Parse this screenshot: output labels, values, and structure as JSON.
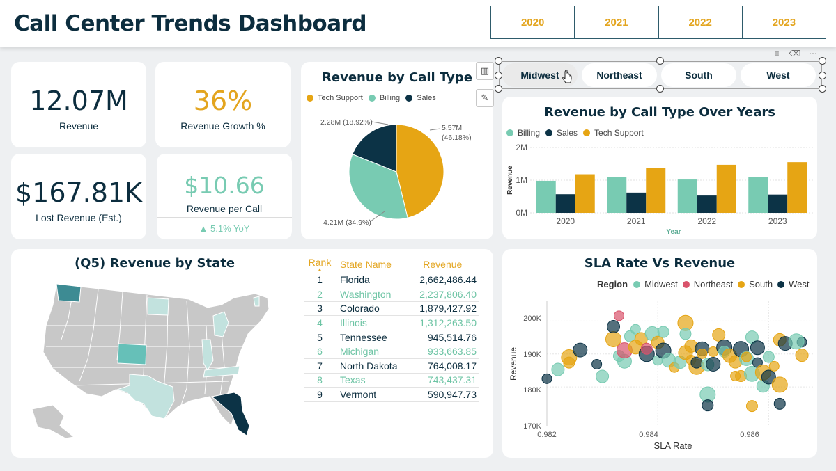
{
  "header": {
    "title": "Call Center Trends Dashboard"
  },
  "year_slicer": [
    "2020",
    "2021",
    "2022",
    "2023"
  ],
  "kpis": {
    "revenue": {
      "value": "12.07M",
      "label": "Revenue"
    },
    "growth": {
      "value": "36%",
      "label": "Revenue Growth %"
    },
    "lost": {
      "value": "$167.81K",
      "label": "Lost Revenue (Est.)"
    },
    "per_call": {
      "value": "$10.66",
      "label": "Revenue per Call",
      "yoy": "5.1% YoY"
    }
  },
  "region_slicer": {
    "items": [
      "Midwest",
      "Northeast",
      "South",
      "West"
    ],
    "selected": "Midwest"
  },
  "colors": {
    "billing": "#78cbb2",
    "sales": "#0c3346",
    "tech_support": "#e6a514",
    "northeast": "#d9536b",
    "highlight_state": "#3d8b93",
    "mid_state": "#66c0b8",
    "light_state": "#c2e2de",
    "gray_state": "#c8c8c8"
  },
  "pie": {
    "title": "Revenue by Call Type",
    "legend": [
      "Tech Support",
      "Billing",
      "Sales"
    ],
    "labels": {
      "tech": "5.57M",
      "tech_pct": "(46.18%)",
      "billing": "4.21M (34.9%)",
      "sales": "2.28M (18.92%)"
    }
  },
  "column": {
    "title": "Revenue by Call Type Over Years",
    "legend": [
      "Billing",
      "Sales",
      "Tech Support"
    ],
    "ylabel": "Revenue",
    "xlabel": "Year",
    "yticks": [
      "2M",
      "1M",
      "0M"
    ]
  },
  "map": {
    "title": "(Q5) Revenue by State"
  },
  "state_table": {
    "headers": {
      "rank": "Rank",
      "name": "State Name",
      "revenue": "Revenue"
    },
    "rows": [
      {
        "rank": "1",
        "name": "Florida",
        "revenue": "2,662,486.44"
      },
      {
        "rank": "2",
        "name": "Washington",
        "revenue": "2,237,806.40"
      },
      {
        "rank": "3",
        "name": "Colorado",
        "revenue": "1,879,427.92"
      },
      {
        "rank": "4",
        "name": "Illinois",
        "revenue": "1,312,263.50"
      },
      {
        "rank": "5",
        "name": "Tennessee",
        "revenue": "945,514.76"
      },
      {
        "rank": "6",
        "name": "Michigan",
        "revenue": "933,663.85"
      },
      {
        "rank": "7",
        "name": "North Dakota",
        "revenue": "764,008.17"
      },
      {
        "rank": "8",
        "name": "Texas",
        "revenue": "743,437.31"
      },
      {
        "rank": "9",
        "name": "Vermont",
        "revenue": "590,947.73"
      }
    ]
  },
  "scatter": {
    "title": "SLA Rate Vs Revenue",
    "legend_title": "Region",
    "legend": [
      "Midwest",
      "Northeast",
      "South",
      "West"
    ],
    "xlabel": "SLA Rate",
    "ylabel": "Revenue",
    "xticks": [
      "0.982",
      "0.984",
      "0.986"
    ],
    "yticks": [
      "200K",
      "190K",
      "180K",
      "170K"
    ]
  },
  "chart_data": [
    {
      "type": "pie",
      "title": "Revenue by Call Type",
      "categories": [
        "Tech Support",
        "Billing",
        "Sales"
      ],
      "values": [
        5.57,
        4.21,
        2.28
      ],
      "percent": [
        46.18,
        34.9,
        18.92
      ],
      "unit": "M"
    },
    {
      "type": "bar",
      "title": "Revenue by Call Type Over Years",
      "categories": [
        "2020",
        "2021",
        "2022",
        "2023"
      ],
      "series": [
        {
          "name": "Billing",
          "values": [
            0.98,
            1.1,
            1.02,
            1.1
          ]
        },
        {
          "name": "Sales",
          "values": [
            0.57,
            0.62,
            0.53,
            0.56
          ]
        },
        {
          "name": "Tech Support",
          "values": [
            1.18,
            1.38,
            1.47,
            1.55
          ]
        }
      ],
      "xlabel": "Year",
      "ylabel": "Revenue",
      "ylim": [
        0,
        2
      ],
      "unit": "M"
    },
    {
      "type": "scatter",
      "title": "SLA Rate Vs Revenue",
      "xlabel": "SLA Rate",
      "ylabel": "Revenue",
      "xlim": [
        0.982,
        0.9868
      ],
      "ylim": [
        168,
        206
      ],
      "unit_y": "K",
      "legend": [
        "Midwest",
        "Northeast",
        "South",
        "West"
      ],
      "points": [
        {
          "x": 0.982,
          "y": 182.5,
          "r": "West"
        },
        {
          "x": 0.9822,
          "y": 185.3,
          "r": "Midwest"
        },
        {
          "x": 0.9824,
          "y": 189.0,
          "r": "South"
        },
        {
          "x": 0.9824,
          "y": 187.4,
          "r": "South"
        },
        {
          "x": 0.9826,
          "y": 191.2,
          "r": "West"
        },
        {
          "x": 0.9829,
          "y": 186.9,
          "r": "West"
        },
        {
          "x": 0.983,
          "y": 183.2,
          "r": "Midwest"
        },
        {
          "x": 0.9832,
          "y": 194.5,
          "r": "South"
        },
        {
          "x": 0.9833,
          "y": 189.4,
          "r": "Midwest"
        },
        {
          "x": 0.9834,
          "y": 187.8,
          "r": "Midwest"
        },
        {
          "x": 0.9833,
          "y": 201.6,
          "r": "Northeast"
        },
        {
          "x": 0.9832,
          "y": 198.3,
          "r": "West"
        },
        {
          "x": 0.9834,
          "y": 191.1,
          "r": "Northeast"
        },
        {
          "x": 0.9835,
          "y": 195.4,
          "r": "Midwest"
        },
        {
          "x": 0.9836,
          "y": 192.1,
          "r": "South"
        },
        {
          "x": 0.9836,
          "y": 197.5,
          "r": "Midwest"
        },
        {
          "x": 0.9837,
          "y": 194.6,
          "r": "South"
        },
        {
          "x": 0.9838,
          "y": 190.0,
          "r": "West"
        },
        {
          "x": 0.9838,
          "y": 191.6,
          "r": "Northeast"
        },
        {
          "x": 0.9839,
          "y": 196.2,
          "r": "Midwest"
        },
        {
          "x": 0.984,
          "y": 188.1,
          "r": "Midwest"
        },
        {
          "x": 0.984,
          "y": 193.5,
          "r": "South"
        },
        {
          "x": 0.9841,
          "y": 191.0,
          "r": "West"
        },
        {
          "x": 0.9841,
          "y": 196.7,
          "r": "Midwest"
        },
        {
          "x": 0.9842,
          "y": 188.1,
          "r": "Midwest"
        },
        {
          "x": 0.9843,
          "y": 185.9,
          "r": "South"
        },
        {
          "x": 0.9844,
          "y": 187.5,
          "r": "Midwest"
        },
        {
          "x": 0.9845,
          "y": 199.4,
          "r": "South"
        },
        {
          "x": 0.9845,
          "y": 196.1,
          "r": "Midwest"
        },
        {
          "x": 0.9845,
          "y": 190.4,
          "r": "South"
        },
        {
          "x": 0.9846,
          "y": 188.2,
          "r": "South"
        },
        {
          "x": 0.9846,
          "y": 192.4,
          "r": "South"
        },
        {
          "x": 0.9847,
          "y": 186.1,
          "r": "South"
        },
        {
          "x": 0.9847,
          "y": 187.4,
          "r": "West"
        },
        {
          "x": 0.9848,
          "y": 191.6,
          "r": "West"
        },
        {
          "x": 0.9848,
          "y": 190.1,
          "r": "South"
        },
        {
          "x": 0.9849,
          "y": 186.8,
          "r": "Midwest"
        },
        {
          "x": 0.9849,
          "y": 177.7,
          "r": "Midwest"
        },
        {
          "x": 0.9849,
          "y": 174.4,
          "r": "West"
        },
        {
          "x": 0.985,
          "y": 186.9,
          "r": "West"
        },
        {
          "x": 0.985,
          "y": 190.7,
          "r": "South"
        },
        {
          "x": 0.9851,
          "y": 195.8,
          "r": "South"
        },
        {
          "x": 0.9852,
          "y": 192.0,
          "r": "West"
        },
        {
          "x": 0.9852,
          "y": 190.7,
          "r": "Midwest"
        },
        {
          "x": 0.9853,
          "y": 189.5,
          "r": "South"
        },
        {
          "x": 0.9854,
          "y": 183.3,
          "r": "South"
        },
        {
          "x": 0.9854,
          "y": 187.6,
          "r": "South"
        },
        {
          "x": 0.9855,
          "y": 191.5,
          "r": "West"
        },
        {
          "x": 0.9855,
          "y": 183.3,
          "r": "South"
        },
        {
          "x": 0.9856,
          "y": 188.6,
          "r": "Midwest"
        },
        {
          "x": 0.9856,
          "y": 189.1,
          "r": "South"
        },
        {
          "x": 0.9857,
          "y": 195.1,
          "r": "Midwest"
        },
        {
          "x": 0.9857,
          "y": 184.0,
          "r": "Midwest"
        },
        {
          "x": 0.9857,
          "y": 174.2,
          "r": "South"
        },
        {
          "x": 0.9858,
          "y": 191.9,
          "r": "West"
        },
        {
          "x": 0.9858,
          "y": 187.4,
          "r": "West"
        },
        {
          "x": 0.9859,
          "y": 180.3,
          "r": "Midwest"
        },
        {
          "x": 0.9859,
          "y": 184.4,
          "r": "South"
        },
        {
          "x": 0.986,
          "y": 189.1,
          "r": "Midwest"
        },
        {
          "x": 0.986,
          "y": 183.0,
          "r": "West"
        },
        {
          "x": 0.9861,
          "y": 186.3,
          "r": "South"
        },
        {
          "x": 0.9862,
          "y": 194.3,
          "r": "South"
        },
        {
          "x": 0.9862,
          "y": 180.7,
          "r": "South"
        },
        {
          "x": 0.9862,
          "y": 174.9,
          "r": "West"
        },
        {
          "x": 0.9863,
          "y": 193.2,
          "r": "West"
        },
        {
          "x": 0.9866,
          "y": 193.6,
          "r": "West"
        },
        {
          "x": 0.9866,
          "y": 189.6,
          "r": "South"
        },
        {
          "x": 0.9865,
          "y": 193.8,
          "r": "Midwest"
        }
      ]
    }
  ]
}
